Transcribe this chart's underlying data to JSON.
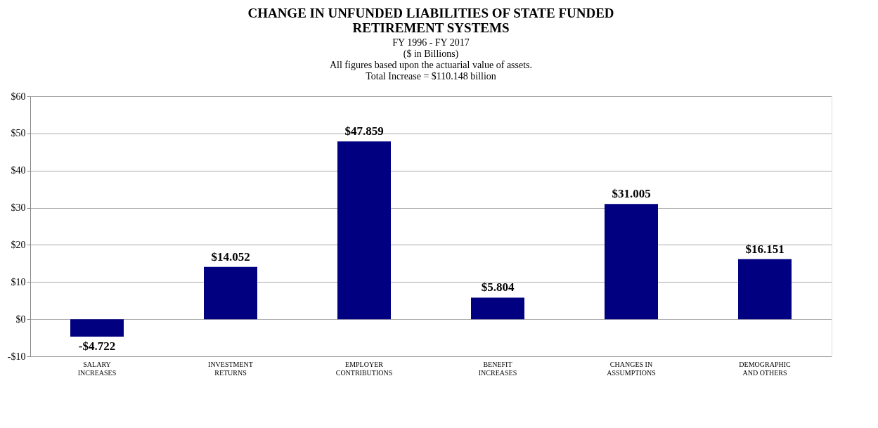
{
  "chart_data": {
    "type": "bar",
    "title": "CHANGE IN UNFUNDED LIABILITIES OF STATE FUNDED\nRETIREMENT SYSTEMS",
    "subtitle": "FY 1996 - FY 2017\n($ in Billions)",
    "annotations": [
      "All figures based upon the actuarial value of assets.",
      "Total Increase = $110.148  billion"
    ],
    "categories": [
      "SALARY\nINCREASES",
      "INVESTMENT\nRETURNS",
      "EMPLOYER\nCONTRIBUTIONS",
      "BENEFIT\nINCREASES",
      "CHANGES IN\nASSUMPTIONS",
      "DEMOGRAPHIC\nAND OTHERS"
    ],
    "values": [
      -4.722,
      14.052,
      47.859,
      5.804,
      31.005,
      16.151
    ],
    "value_labels": [
      "-$4.722",
      "$14.052",
      "$47.859",
      "$5.804",
      "$31.005",
      "$16.151"
    ],
    "color": "#000080",
    "ylim": [
      -10,
      60
    ],
    "yticks": [
      {
        "value": -10,
        "label": "-$10"
      },
      {
        "value": 0,
        "label": "$0"
      },
      {
        "value": 10,
        "label": "$10"
      },
      {
        "value": 20,
        "label": "$20"
      },
      {
        "value": 30,
        "label": "$30"
      },
      {
        "value": 40,
        "label": "$40"
      },
      {
        "value": 50,
        "label": "$50"
      },
      {
        "value": 60,
        "label": "$60"
      }
    ],
    "grid": "y"
  }
}
